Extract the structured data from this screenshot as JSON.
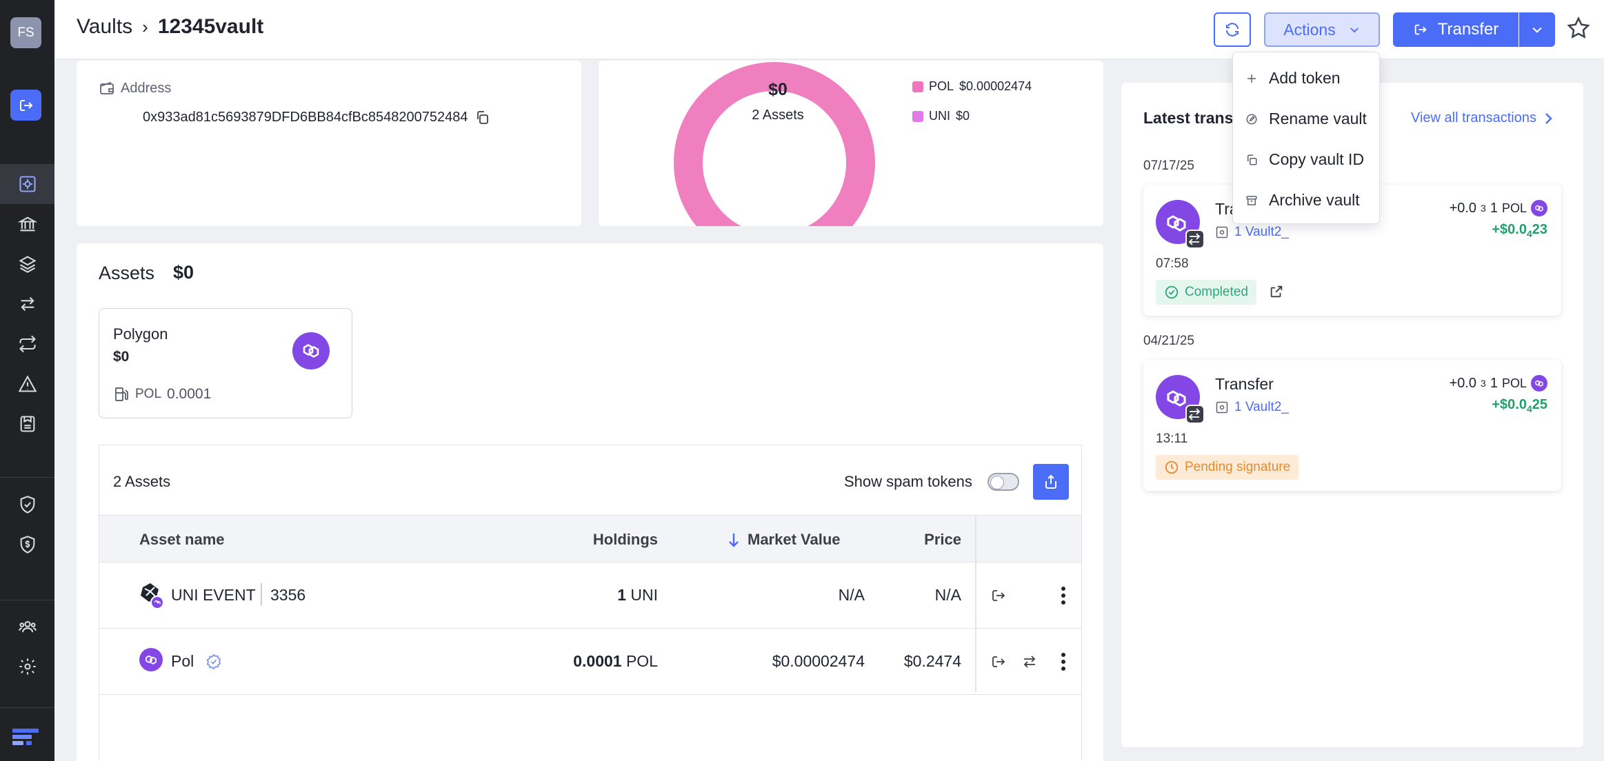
{
  "user": {
    "initials": "FS"
  },
  "breadcrumb": {
    "root": "Vaults",
    "separator": "›",
    "current": "12345vault"
  },
  "toolbar": {
    "actions_label": "Actions",
    "transfer_label": "Transfer"
  },
  "actions_menu": {
    "items": [
      {
        "label": "Add token",
        "icon": "plus-icon"
      },
      {
        "label": "Rename vault",
        "icon": "edit-icon"
      },
      {
        "label": "Copy vault ID",
        "icon": "copy-icon"
      },
      {
        "label": "Archive vault",
        "icon": "archive-icon"
      }
    ]
  },
  "vault": {
    "address_label": "Address",
    "address": "0x933ad81c5693879DFD6BB84cfBc8548200752484"
  },
  "allocation": {
    "total": "$0",
    "assets_count": "2",
    "assets_word": "Assets",
    "legend": [
      {
        "symbol": "POL",
        "value": "$0.00002474",
        "color": "#f075c0"
      },
      {
        "symbol": "UNI",
        "value": "$0",
        "color": "#e27ae8"
      }
    ],
    "ring_color": "#f07fc0"
  },
  "assets": {
    "title": "Assets",
    "total": "$0",
    "network": {
      "name": "Polygon",
      "value": "$0",
      "gas_symbol": "POL",
      "gas_amount": "0.0001"
    },
    "count_label": "2 Assets",
    "spam_label": "Show spam tokens",
    "spam_enabled": false,
    "columns": {
      "name": "Asset name",
      "holdings": "Holdings",
      "market_value": "Market Value",
      "price": "Price"
    },
    "rows": [
      {
        "name": "UNI EVENT",
        "token_id": "3356",
        "holdings_amount": "1",
        "holdings_symbol": "UNI",
        "market_value": "N/A",
        "price": "N/A"
      },
      {
        "name": "Pol",
        "holdings_amount": "0.0001",
        "holdings_symbol": "POL",
        "market_value": "$0.00002474",
        "price": "$0.2474"
      }
    ]
  },
  "transactions": {
    "title": "Latest trans",
    "view_all": "View all transactions",
    "groups": [
      {
        "date": "07/17/25",
        "type": "Tra",
        "vault": "1 Vault2_",
        "amount_prefix": "+0.0",
        "amount_sub": "3",
        "amount_suffix": "1",
        "symbol": "POL",
        "usd_prefix": "+$0.0",
        "usd_sub": "4",
        "usd_suffix": "23",
        "time": "07:58",
        "status": "Completed"
      },
      {
        "date": "04/21/25",
        "type": "Transfer",
        "vault": "1 Vault2_",
        "amount_prefix": "+0.0",
        "amount_sub": "3",
        "amount_suffix": "1",
        "symbol": "POL",
        "usd_prefix": "+$0.0",
        "usd_sub": "4",
        "usd_suffix": "25",
        "time": "13:11",
        "status": "Pending signature"
      }
    ]
  },
  "colors": {
    "accent": "#4a6cf7",
    "polygon": "#8247e5",
    "success": "#22a06b",
    "pending": "#e68a2e",
    "sidebar": "#202226"
  }
}
